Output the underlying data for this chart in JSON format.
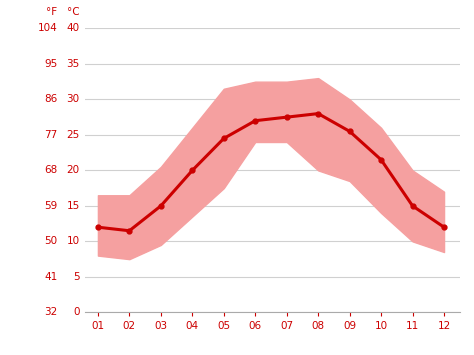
{
  "months": [
    1,
    2,
    3,
    4,
    5,
    6,
    7,
    8,
    9,
    10,
    11,
    12
  ],
  "month_labels": [
    "01",
    "02",
    "03",
    "04",
    "05",
    "06",
    "07",
    "08",
    "09",
    "10",
    "11",
    "12"
  ],
  "avg_temp_c": [
    12.0,
    11.5,
    15.0,
    20.0,
    24.5,
    27.0,
    27.5,
    28.0,
    25.5,
    21.5,
    15.0,
    12.0
  ],
  "max_temp_c": [
    16.5,
    16.5,
    20.5,
    26.0,
    31.5,
    32.5,
    32.5,
    33.0,
    30.0,
    26.0,
    20.0,
    17.0
  ],
  "min_temp_c": [
    8.0,
    7.5,
    9.5,
    13.5,
    17.5,
    24.0,
    24.0,
    20.0,
    18.5,
    14.0,
    10.0,
    8.5
  ],
  "line_color": "#cc0000",
  "band_color": "#f5a0a0",
  "background_color": "#ffffff",
  "grid_color": "#d0d0d0",
  "tick_color": "#cc0000",
  "left_ticks_f": [
    32,
    41,
    50,
    59,
    68,
    77,
    86,
    95,
    104
  ],
  "left_ticks_c": [
    0,
    5,
    10,
    15,
    20,
    25,
    30,
    35,
    40
  ],
  "ylim_c": [
    0,
    40
  ],
  "figsize": [
    4.74,
    3.55
  ],
  "dpi": 100
}
